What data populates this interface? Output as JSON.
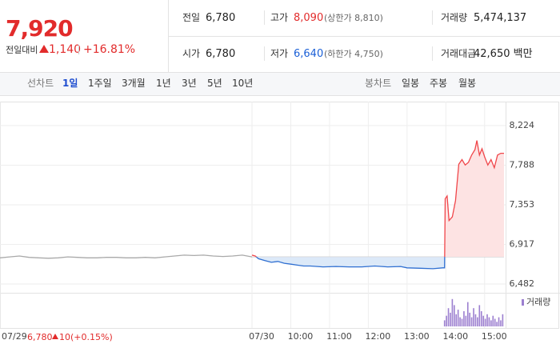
{
  "summary": {
    "price": "7,920",
    "change_label": "전일대비",
    "change": "1,140",
    "change_pct": "+16.81%"
  },
  "stats": {
    "row1": [
      {
        "label": "전일",
        "value": "6,780"
      },
      {
        "label": "고가",
        "value": "8,090",
        "note": "(상한가 8,810)"
      },
      {
        "label": "거래량",
        "value": "5,474,137"
      }
    ],
    "row2": [
      {
        "label": "시가",
        "value": "6,780"
      },
      {
        "label": "저가",
        "value": "6,640",
        "note": "(하한가 4,750)"
      },
      {
        "label": "거래대금",
        "value": "42,650 백만"
      }
    ]
  },
  "tabs": {
    "line_label": "선차트",
    "line_items": [
      "1일",
      "1주일",
      "3개월",
      "1년",
      "3년",
      "5년",
      "10년"
    ],
    "candle_label": "봉차트",
    "candle_items": [
      "일봉",
      "주봉",
      "월봉"
    ]
  },
  "prev_day": {
    "close": "6,780",
    "change": "10",
    "change_pct": "(+0.15%)"
  },
  "chart_data": {
    "type": "line",
    "xlim": [
      0,
      780
    ],
    "ylim": [
      6394,
      8488
    ],
    "xticks": [
      {
        "value": 0,
        "label": "07/29"
      },
      {
        "value": 390,
        "label": "07/30"
      },
      {
        "value": 450,
        "label": "10:00"
      },
      {
        "value": 510,
        "label": "11:00"
      },
      {
        "value": 570,
        "label": "12:00"
      },
      {
        "value": 630,
        "label": "13:00"
      },
      {
        "value": 690,
        "label": "14:00"
      },
      {
        "value": 750,
        "label": "15:00"
      }
    ],
    "yticks": [
      {
        "value": 8224,
        "label": "8,224"
      },
      {
        "value": 7788,
        "label": "7,788"
      },
      {
        "value": 7353,
        "label": "7,353"
      },
      {
        "value": 6917,
        "label": "6,917"
      },
      {
        "value": 6482,
        "label": "6,482"
      }
    ],
    "reference": 6780,
    "grid": true,
    "series": [
      {
        "color": "#a9a9a9",
        "x": [
          0,
          15,
          30,
          45,
          60,
          75,
          90,
          105,
          120,
          135,
          150,
          165,
          180,
          195,
          210,
          225,
          240,
          255,
          270,
          285,
          300,
          315,
          330,
          345,
          360,
          375,
          390
        ],
        "values": [
          6770,
          6780,
          6790,
          6775,
          6770,
          6765,
          6770,
          6780,
          6775,
          6770,
          6770,
          6775,
          6775,
          6770,
          6770,
          6775,
          6770,
          6780,
          6790,
          6800,
          6795,
          6800,
          6790,
          6785,
          6790,
          6800,
          6780
        ]
      },
      {
        "color": "#f0464a",
        "down_color": "#2f6fd1",
        "fill": "#fde3e3",
        "down_fill": "#dce9f8",
        "x": [
          390,
          395,
          400,
          410,
          420,
          430,
          440,
          450,
          460,
          470,
          480,
          500,
          520,
          540,
          560,
          580,
          600,
          620,
          630,
          650,
          670,
          685,
          688,
          689,
          692,
          695,
          700,
          705,
          710,
          715,
          720,
          725,
          730,
          735,
          738,
          742,
          746,
          750,
          755,
          760,
          765,
          770,
          775,
          780
        ],
        "values": [
          6800,
          6790,
          6760,
          6740,
          6720,
          6730,
          6710,
          6700,
          6690,
          6680,
          6680,
          6670,
          6675,
          6670,
          6670,
          6680,
          6670,
          6675,
          6660,
          6655,
          6650,
          6660,
          6660,
          7420,
          7450,
          7180,
          7220,
          7400,
          7800,
          7850,
          7790,
          7820,
          7900,
          7960,
          8060,
          7900,
          7970,
          7880,
          7790,
          7850,
          7760,
          7900,
          7920,
          7920
        ]
      },
      {
        "name": "거래량",
        "color": "#9c7fd0",
        "axis": "y2",
        "x": [
          688,
          691,
          694,
          697,
          700,
          703,
          706,
          709,
          712,
          715,
          718,
          721,
          724,
          727,
          730,
          733,
          736,
          739,
          742,
          745,
          748,
          751,
          754,
          757,
          760,
          763,
          766,
          769,
          772,
          775,
          778
        ],
        "values": [
          20,
          35,
          60,
          45,
          90,
          70,
          40,
          55,
          30,
          25,
          50,
          35,
          80,
          45,
          30,
          60,
          40,
          30,
          70,
          50,
          35,
          25,
          40,
          30,
          20,
          35,
          25,
          15,
          30,
          20,
          40
        ]
      }
    ],
    "y2lim": [
      0,
      100
    ]
  }
}
